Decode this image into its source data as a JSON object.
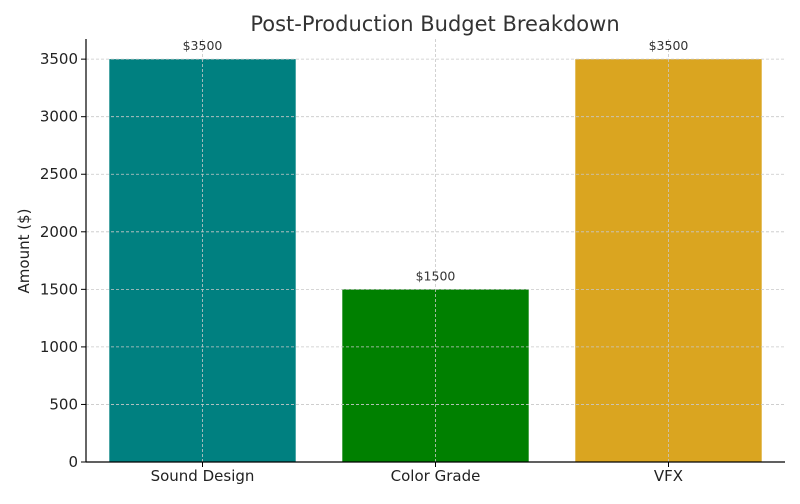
{
  "chart_data": {
    "type": "bar",
    "title": "Post-Production Budget Breakdown",
    "xlabel": "",
    "ylabel": "Amount ($)",
    "categories": [
      "Sound Design",
      "Color Grade",
      "VFX"
    ],
    "values": [
      3500,
      1500,
      3500
    ],
    "data_labels": [
      "$3500",
      "$1500",
      "$3500"
    ],
    "colors": [
      "#008080",
      "#008000",
      "#DAA520"
    ],
    "ylim": [
      0,
      3675
    ],
    "yticks": [
      0,
      500,
      1000,
      1500,
      2000,
      2500,
      3000,
      3500
    ],
    "grid": true,
    "legend": "none"
  }
}
